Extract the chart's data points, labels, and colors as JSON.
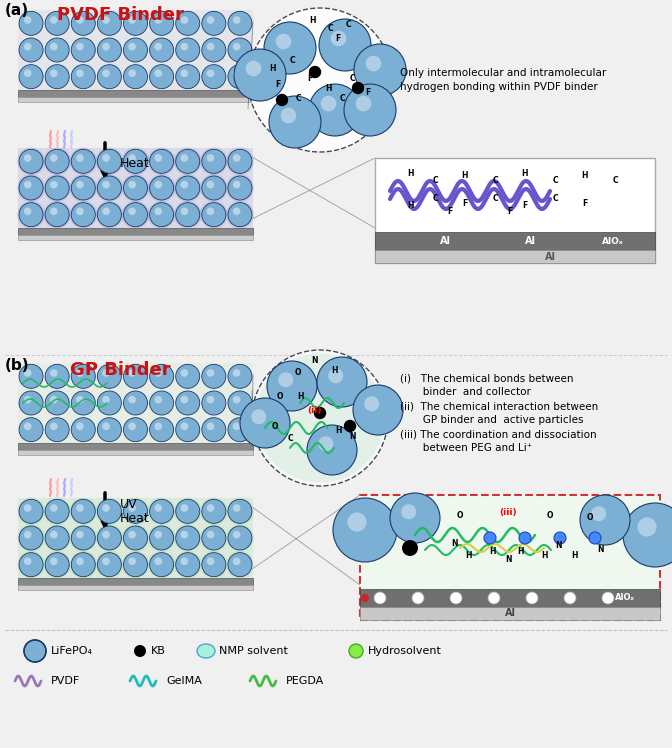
{
  "title_a": "PVDF Binder",
  "title_b": "GP Binder",
  "heat_label": "Heat",
  "uv_label": "UV",
  "heat_label2": "Heat",
  "text_a_right_1": "Only intermolecular and intramolecular",
  "text_a_right_2": "hydrogen bonding within PVDF binder",
  "text_b_i": "(i)   The chemical bonds between",
  "text_b_i2": "       binder  and collector",
  "text_b_ii": "(ii)  The chemical interaction between",
  "text_b_ii2": "       GP binder and  active particles",
  "text_b_iii": "(iii) The coordination and dissociation",
  "text_b_iii2": "       between PEG and Li⁺",
  "particle_color": "#7bafd4",
  "particle_edge_color": "#1a3a6a",
  "particle_highlight": "#c8e0f0",
  "pvdf_binder_color": "#9090cc",
  "gp_binder_color": "#aaddaa",
  "substrate_dark": "#888888",
  "substrate_light": "#cccccc",
  "title_color": "#cc1111",
  "bg_color": "#f0f0f0",
  "pvdf_chain_color": "#6655cc",
  "gp_chain_color": "#22bb66",
  "legend_nmp_color": "#bbeeee",
  "legend_hydro_color": "#88ee44"
}
